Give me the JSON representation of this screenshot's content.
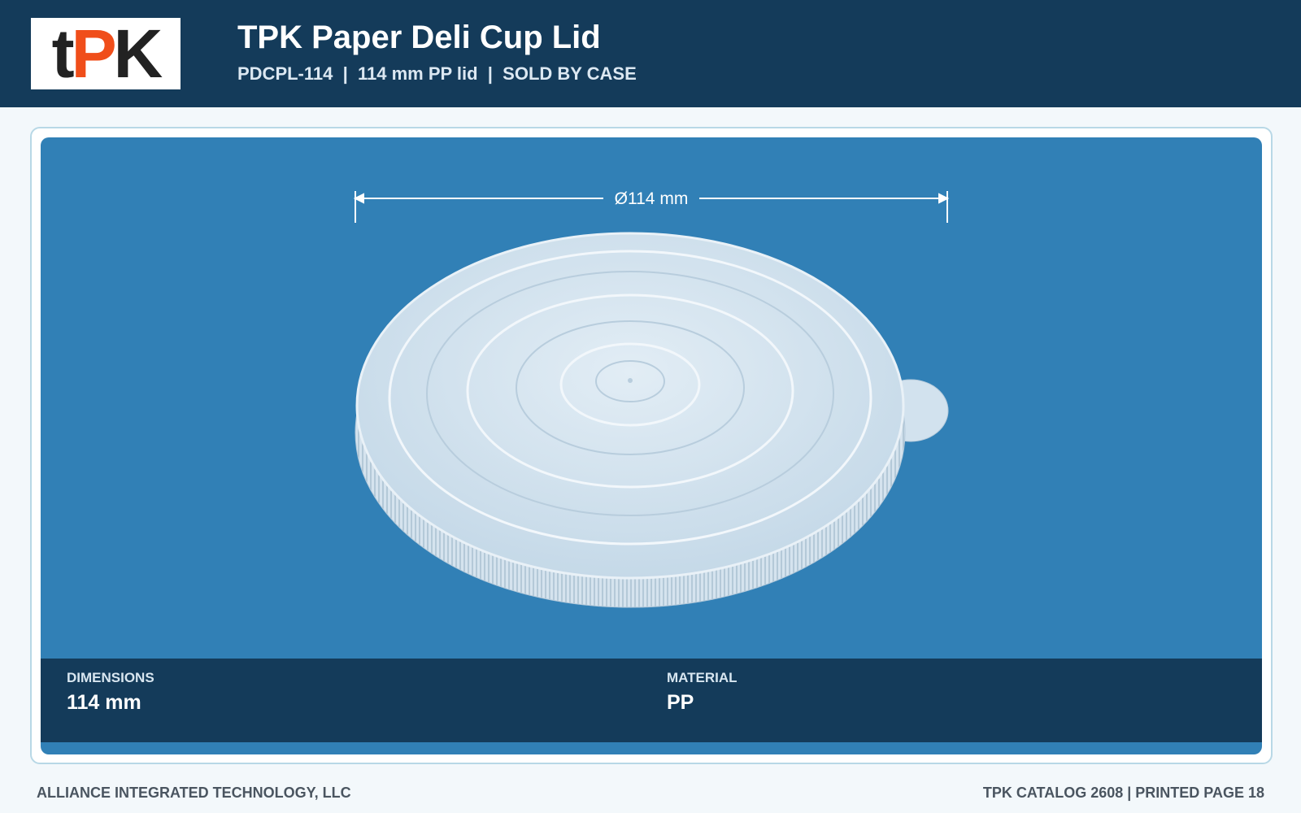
{
  "header": {
    "logo_letters": [
      "t",
      "P",
      "K"
    ],
    "title": "TPK Paper Deli Cup Lid",
    "subtitle": "PDCPL-114  |  114 mm PP lid  |  SOLD BY CASE"
  },
  "product": {
    "dimension_label": "Ø114 mm"
  },
  "specs": [
    {
      "label": "DIMENSIONS",
      "value": "114 mm"
    },
    {
      "label": "MATERIAL",
      "value": "PP"
    }
  ],
  "footer": {
    "left": "ALLIANCE INTEGRATED TECHNOLOGY, LLC",
    "right": "TPK CATALOG 2608 | PRINTED PAGE 18"
  }
}
